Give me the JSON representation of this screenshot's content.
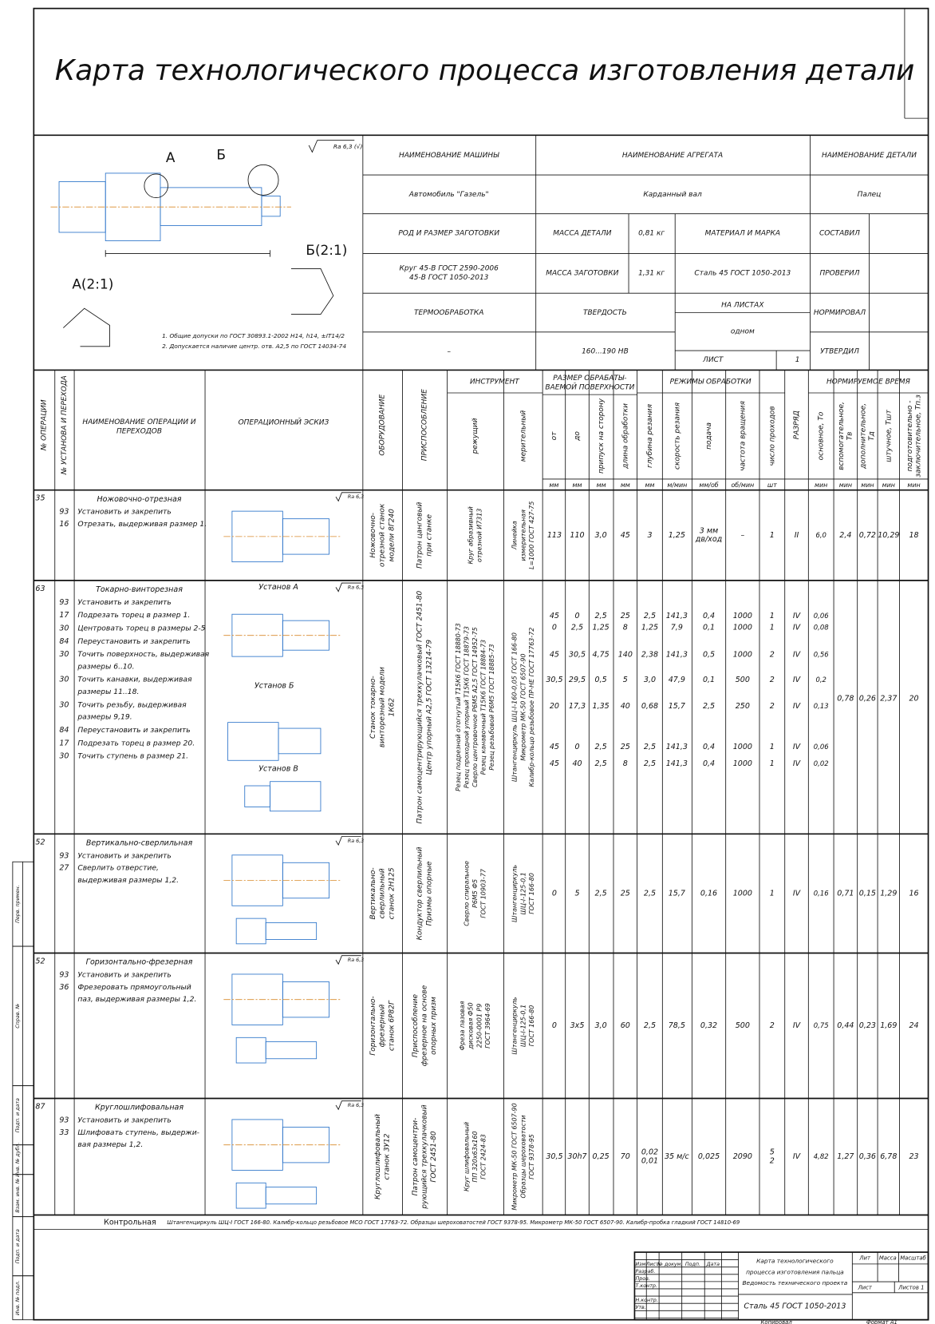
{
  "title": "Карта  технологического процесса изготовления детали",
  "drawing": {
    "view_a": "А",
    "view_b": "Б",
    "detail_b": "Б(2:1)",
    "detail_a": "А(2:1)",
    "roughness": "Ra 6,3 (√)",
    "notes": [
      "1. Общие допуски по ГОСТ 30893.1-2002 Н14, h14, ±IT14/2",
      "2. Допускается наличие центр. отв. А2,5 по ГОСТ 14034-74"
    ]
  },
  "header": {
    "cells": [
      "НАИМЕНОВАНИЕ МАШИНЫ",
      "НАИМЕНОВАНИЕ АГРЕГАТА",
      "НАИМЕНОВАНИЕ ДЕТАЛИ",
      "Автомобиль \"Газель\"",
      "Карданный вал",
      "Палец",
      "РОД И РАЗМЕР ЗАГОТОВКИ",
      "МАССА ДЕТАЛИ",
      "0,81 кг",
      "МАТЕРИАЛ И МАРКА",
      "СОСТАВИЛ",
      [
        "Круг 45-В ГОСТ 2590-2006",
        "45-В ГОСТ 1050-2013"
      ],
      "МАССА ЗАГОТОВКИ",
      "1,31 кг",
      "Сталь 45 ГОСТ 1050-2013",
      "ПРОВЕРИЛ",
      "ТЕРМООБРАБОТКА",
      "ТВЕРДОСТЬ",
      "НА ЛИСТАХ",
      "одном",
      "НОРМИРОВАЛ",
      "–",
      "160...190 HB",
      "ЛИСТ",
      "1",
      "УТВЕРДИЛ"
    ]
  },
  "columns": {
    "vertical": [
      "№ ОПЕРАЦИИ",
      "№ УСТАНОВА И ПЕРЕХОДА",
      "ОБОРУДОВАНИЕ",
      "ПРИСПОСОБЛЕНИЕ",
      "режущий",
      "мерительный",
      "от",
      "до",
      "припуск на сторону",
      "длина обработки",
      "глубина резания",
      "скорость резания",
      "подача",
      "частота вращения",
      "число проходов",
      "РАЗРЯД",
      "основное, То",
      [
        "вспомогательное,",
        "Тв"
      ],
      [
        "дополнительное,",
        "Тд"
      ],
      "штучное, Тшт",
      [
        "подготовительно -",
        "заключительное, Тп.з"
      ]
    ],
    "operations_header": [
      "НАИМЕНОВАНИЕ ОПЕРАЦИИ И",
      "ПЕРЕХОДОВ"
    ],
    "sketch_header": "ОПЕРАЦИОННЫЙ ЭСКИЗ",
    "groups": [
      "ИНСТРУМЕНТ",
      [
        "РАЗМЕР ОБРАБАТЫ-",
        "ВАЕМОЙ ПОВЕРХНОСТИ"
      ],
      "РЕЖИМЫ ОБРАБОТКИ",
      "НОРМИРУЕМОЕ ВРЕМЯ"
    ],
    "units": [
      "мм",
      "мм",
      "мм",
      "мм",
      "мм",
      "м/мин",
      "мм/об",
      "об/мин",
      "шт",
      "мин",
      "мин",
      "мин",
      "мин",
      "мин"
    ]
  },
  "operations": [
    {
      "number": "35",
      "name": "Ножовочно-отрезная",
      "roughness": "Ra 6,3",
      "steps": [
        {
          "code": "93",
          "text": [
            "Установить и закрепить"
          ]
        },
        {
          "code": "16",
          "text": [
            "Отрезать, выдерживая размер 1."
          ]
        }
      ],
      "equipment": [
        "Ножовочно-",
        "отрезной станок",
        "модели 8Г240"
      ],
      "fixture": [
        "Патрон цанговый",
        "при станке"
      ],
      "cutting_tool": [
        "Круг абразивный",
        "отрезной И7313"
      ],
      "measuring_tool": [
        "Линейка",
        "измерительная",
        "L=1000 ГОСТ 427-75"
      ],
      "params": [
        [
          "113",
          "110",
          "3,0",
          "45",
          "3",
          "1,25",
          [
            "3 мм",
            "дв/ход"
          ],
          "–",
          "1",
          "II",
          "6,0"
        ]
      ],
      "times": [
        "2,4",
        "0,72",
        "10,29",
        "18"
      ]
    },
    {
      "number": "63",
      "name": "Токарно-винторезная",
      "roughness": "Ra 6,3",
      "sketch_labels": [
        "Установ А",
        "Установ Б",
        "Установ В"
      ],
      "steps": [
        {
          "code": "93",
          "text": [
            "Установить и закрепить"
          ]
        },
        {
          "code": "17",
          "text": [
            "Подрезать торец в размер 1."
          ]
        },
        {
          "code": "30",
          "text": [
            "Центровать торец в размеры 2-5"
          ]
        },
        {
          "code": "84",
          "text": [
            "Переустановить и закрепить"
          ]
        },
        {
          "code": "30",
          "text": [
            "Точить поверхность, выдерживая",
            "размеры 6..10."
          ]
        },
        {
          "code": "30",
          "text": [
            "Точить канавки, выдерживая",
            "размеры 11..18."
          ]
        },
        {
          "code": "30",
          "text": [
            "Точить резьбу, выдерживая",
            "размеры 9,19."
          ]
        },
        {
          "code": "84",
          "text": [
            "Переустановить и закрепить"
          ]
        },
        {
          "code": "17",
          "text": [
            "Подрезать торец в размер 20."
          ]
        },
        {
          "code": "30",
          "text": [
            "Точить ступень в размер 21."
          ]
        }
      ],
      "equipment": [
        "Станок токарно-",
        "винторезный модели",
        "1К62"
      ],
      "fixture": [
        "Патрон самоцентрирующийся трехкулачковый ГОСТ 2451-80",
        "Центр упорный А2,5 ГОСТ 13214-79"
      ],
      "cutting_tool": [
        "Резец подрезной отогнутый Т15К6 ГОСТ 18880-73",
        "Резец проходной упорный Т15К6 ГОСТ 18879-73",
        "Сверло центровочное Р6М5 А2,5 ГОСТ 14952-75",
        "Резец канавочный Т15К6 ГОСТ 18884-73",
        "Резец резьбовой Р6М5 ГОСТ 18885-73"
      ],
      "measuring_tool": [
        "Штангенциркуль ШЦ-I-160-0,05 ГОСТ 166-80",
        "Микрометр МК-50 ГОСТ 6507-90",
        "Калибр-кольцо резьбовое ПР-НЕ ГОСТ 17763-72"
      ],
      "params": [
        [
          "45",
          "0",
          "2,5",
          "25",
          "2,5",
          "141,3",
          "0,4",
          "1000",
          "1",
          "IV",
          "0,06"
        ],
        [
          "0",
          "2,5",
          "1,25",
          "8",
          "1,25",
          "7,9",
          "0,1",
          "1000",
          "1",
          "IV",
          "0,08"
        ],
        [
          "45",
          "30,5",
          "4,75",
          "140",
          "2,38",
          "141,3",
          "0,5",
          "1000",
          "2",
          "IV",
          "0,56"
        ],
        [
          "30,5",
          "29,5",
          "0,5",
          "5",
          "3,0",
          "47,9",
          "0,1",
          "500",
          "2",
          "IV",
          "0,2"
        ],
        [
          "20",
          "17,3",
          "1,35",
          "40",
          "0,68",
          "15,7",
          "2,5",
          "250",
          "2",
          "IV",
          "0,13"
        ],
        [
          "45",
          "0",
          "2,5",
          "25",
          "2,5",
          "141,3",
          "0,4",
          "1000",
          "1",
          "IV",
          "0,06"
        ],
        [
          "45",
          "40",
          "2,5",
          "8",
          "2,5",
          "141,3",
          "0,4",
          "1000",
          "1",
          "IV",
          "0,02"
        ]
      ],
      "times": [
        "0,78",
        "0,26",
        "2,37",
        "20"
      ]
    },
    {
      "number": "52",
      "name": "Вертикально-сверлильная",
      "roughness": "Ra 6,3",
      "steps": [
        {
          "code": "93",
          "text": [
            "Установить и закрепить"
          ]
        },
        {
          "code": "27",
          "text": [
            "Сверлить отверстие,",
            "выдерживая размеры 1,2."
          ]
        }
      ],
      "equipment": [
        "Вертикально-",
        "сверлильный",
        "станок 2Н125"
      ],
      "fixture": [
        "Кондуктор сверлильный",
        "Призмы опорные"
      ],
      "cutting_tool": [
        "Сверло спиральное",
        "Р6М5 Ф5",
        "ГОСТ 10903-77"
      ],
      "measuring_tool": [
        "Штангенциркуль",
        "ШЦ-I-125-0,1",
        "ГОСТ 166-80"
      ],
      "params": [
        [
          "0",
          "5",
          "2,5",
          "25",
          "2,5",
          "15,7",
          "0,16",
          "1000",
          "1",
          "IV",
          "0,16"
        ]
      ],
      "times": [
        "0,71",
        "0,15",
        "1,29",
        "16"
      ]
    },
    {
      "number": "52",
      "name": "Горизонтально-фрезерная",
      "roughness": "Ra 6,3",
      "steps": [
        {
          "code": "93",
          "text": [
            "Установить и закрепить"
          ]
        },
        {
          "code": "36",
          "text": [
            "Фрезеровать прямоугольный",
            "паз, выдерживая размеры 1,2."
          ]
        }
      ],
      "equipment": [
        "Горизонтально-",
        "фрезерный",
        "станок 6Р82Г"
      ],
      "fixture": [
        "Приспособление",
        "фрезерное на основе",
        "опорных призм"
      ],
      "cutting_tool": [
        "Фреза пазовая",
        "дисковая Ф50",
        "2250-0001 Р9",
        "ГОСТ 3964-69"
      ],
      "measuring_tool": [
        "Штангенциркуль",
        "ШЦ-I-125-0,1",
        "ГОСТ 166-80"
      ],
      "params": [
        [
          "0",
          "3х5",
          "3,0",
          "60",
          "2,5",
          "78,5",
          "0,32",
          "500",
          "2",
          "IV",
          "0,75"
        ]
      ],
      "times": [
        "0,44",
        "0,23",
        "1,69",
        "24"
      ]
    },
    {
      "number": "87",
      "name": "Круглошлифовальная",
      "roughness": "Ra 6,3",
      "steps": [
        {
          "code": "93",
          "text": [
            "Установить и закрепить"
          ]
        },
        {
          "code": "33",
          "text": [
            "Шлифовать ступень, выдержи-",
            "вая размеры 1,2."
          ]
        }
      ],
      "equipment": [
        "Круглошлифовальный",
        "станок 3У12"
      ],
      "fixture": [
        "Патрон самоцентри-",
        "рующийся трехкулачковый",
        "ГОСТ 2451-80"
      ],
      "cutting_tool": [
        "Круг шлифовальный",
        "ПП 320х63х160",
        "ГОСТ 2424-83"
      ],
      "measuring_tool": [
        "Микрометр МК-50 ГОСТ 6507-90",
        "Образцы шероховатости",
        "ГОСТ 9378-95"
      ],
      "params": [
        [
          "30,5",
          "30h7",
          "0,25",
          "70",
          [
            "0,02",
            "0,01"
          ],
          "35 м/с",
          "0,025",
          "2090",
          [
            "5",
            "2"
          ],
          "IV",
          "4,82"
        ]
      ],
      "times": [
        "1,27",
        "0,36",
        "6,78",
        "23"
      ]
    }
  ],
  "control": {
    "name": "Контрольная",
    "text": "Штангенциркуль ШЦ-I ГОСТ 166-80. Калибр-кольцо резьбовое МСО ГОСТ 17763-72. Образцы шероховатостей ГОСТ 9378-95. Микрометр МК-50 ГОСТ 6507-90. Калибр-пробка гладкий ГОСТ 14810-69"
  },
  "stamp": {
    "title": [
      "Карта технологического",
      "процесса изготовления пальца",
      "Ведомость технического проекта"
    ],
    "material": "Сталь 45 ГОСТ 1050-2013",
    "columns": [
      "Изм",
      "Лист",
      "№ докум.",
      "Подп.",
      "Дата"
    ],
    "roles": [
      "Разраб.",
      "Пров.",
      "Т.контр.",
      "Н.контр.",
      "Утв."
    ],
    "right": [
      "Лит",
      "Масса",
      "Масштаб",
      "Лист",
      "Листов  1"
    ],
    "copied": "Копировал",
    "format": "Формат  А1"
  },
  "margin": [
    "Перв. примен.",
    "Справ. №",
    "Подп. и дата",
    "Инв. № дубл.",
    "Взам. инв. №",
    "Подп. и дата",
    "Инв. № подл."
  ]
}
